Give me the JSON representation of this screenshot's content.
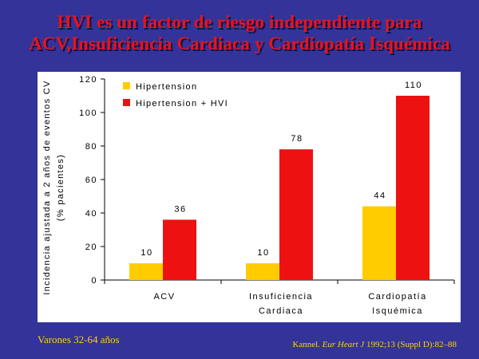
{
  "title": {
    "line1": "HVI es un factor de riesgo independiente para",
    "line2": "ACV,Insuficiencia Cardiaca y Cardiopatía Isquémica"
  },
  "footer": {
    "left": "Varones 32-64 años",
    "ref_author": "Kannel. ",
    "ref_journal": "Eur Heart J",
    "ref_details": " 1992;13 (Suppl D):82–88"
  },
  "colors": {
    "background": "#33339a",
    "title": "#e8131a",
    "hipertension": "#ffcc00",
    "hipertension_hvi": "#ee1111",
    "footer_text": "#ffd200"
  },
  "chart_data": {
    "type": "bar",
    "ylabel_line1": "Incidencia ajustada a 2 años de eventos CV",
    "ylabel_line2": "(% pacientes)",
    "ylim": [
      0,
      120
    ],
    "yticks": [
      "0",
      "20",
      "40",
      "60",
      "80",
      "100",
      "120"
    ],
    "categories": [
      {
        "line1": "ACV",
        "line2": ""
      },
      {
        "line1": "Insuficiencia",
        "line2": "Cardiaca"
      },
      {
        "line1": "Cardiopatía",
        "line2": "Isquémica"
      }
    ],
    "series": [
      {
        "name": "Hipertension",
        "values": [
          10,
          10,
          44
        ],
        "labels": [
          "10",
          "10",
          "44"
        ],
        "color": "#ffcc00"
      },
      {
        "name": "Hipertension + HVI",
        "values": [
          36,
          78,
          110
        ],
        "labels": [
          "36",
          "78",
          "110"
        ],
        "color": "#ee1111"
      }
    ],
    "legend": "top-left",
    "grid": false
  }
}
